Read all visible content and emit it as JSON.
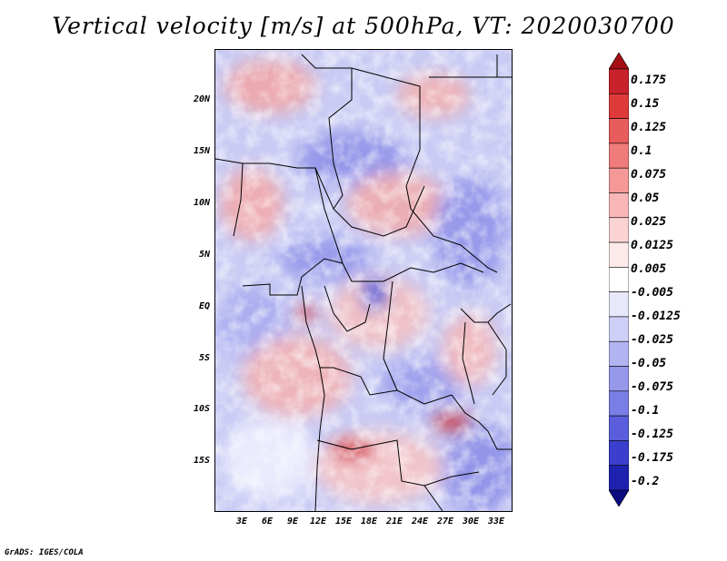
{
  "title": "Vertical velocity [m/s] at 500hPa, VT: 2020030700",
  "credit": "GrADS: IGES/COLA",
  "map": {
    "region": "Central Africa",
    "lat_labels": [
      "20N",
      "15N",
      "10N",
      "5N",
      "EQ",
      "5S",
      "10S",
      "15S"
    ],
    "lon_labels": [
      "3E",
      "6E",
      "9E",
      "12E",
      "15E",
      "18E",
      "21E",
      "24E",
      "27E",
      "30E",
      "33E"
    ]
  },
  "colorbar": {
    "labels": [
      "0.175",
      "0.15",
      "0.125",
      "0.1",
      "0.075",
      "0.05",
      "0.025",
      "0.0125",
      "0.005",
      "-0.005",
      "-0.0125",
      "-0.025",
      "-0.05",
      "-0.075",
      "-0.1",
      "-0.125",
      "-0.175",
      "-0.2"
    ],
    "colors": [
      "#a50f15",
      "#c8222a",
      "#de3a3a",
      "#e95c5c",
      "#f07b7b",
      "#f49898",
      "#f8b6b6",
      "#fbd3d3",
      "#fde9e9",
      "#ffffff",
      "#e8e8fb",
      "#cfd0f7",
      "#b2b4f2",
      "#9698ec",
      "#797de6",
      "#5a5edc",
      "#3a3fcf",
      "#1e22b0",
      "#0a0c80"
    ]
  }
}
